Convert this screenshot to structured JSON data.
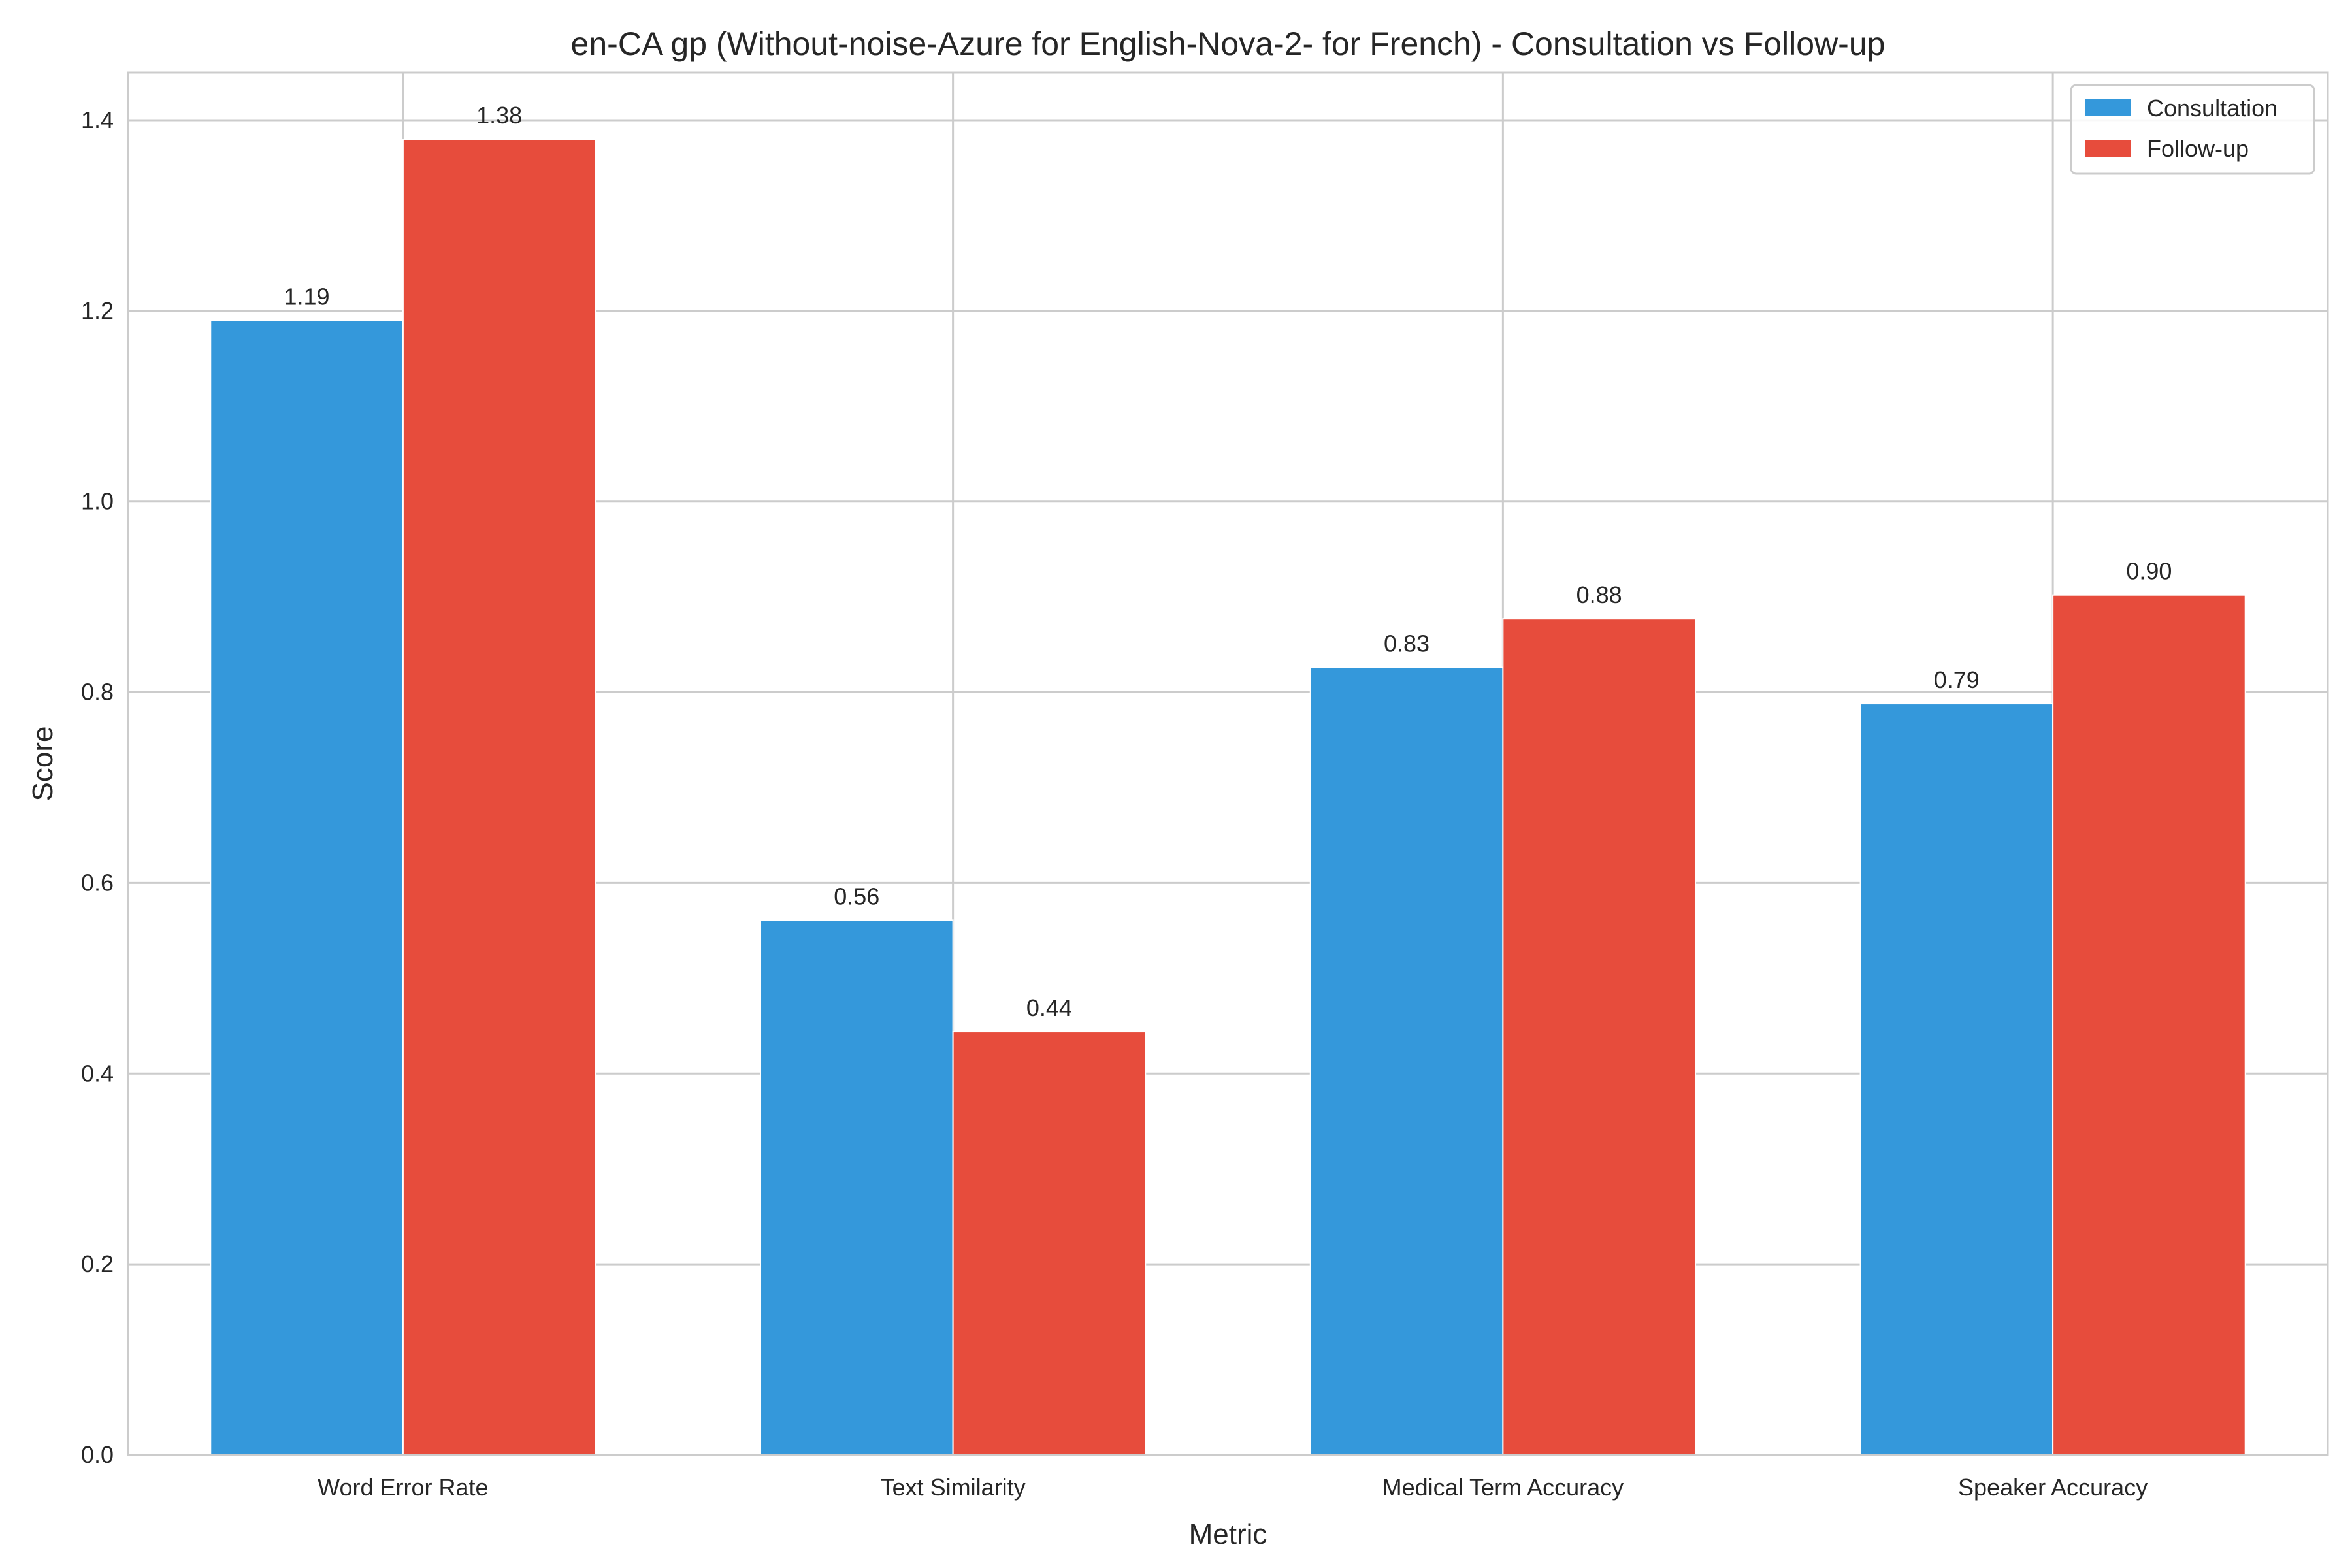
{
  "chart_data": {
    "type": "bar",
    "title": "en-CA gp (Without-noise-Azure for English-Nova-2- for French) - Consultation vs Follow-up",
    "xlabel": "Metric",
    "ylabel": "Score",
    "categories": [
      "Word Error Rate",
      "Text Similarity",
      "Medical Term Accuracy",
      "Speaker Accuracy"
    ],
    "series": [
      {
        "name": "Consultation",
        "color": "#3498db",
        "values": [
          1.19,
          0.561,
          0.826,
          0.788
        ],
        "labels": [
          "1.19",
          "0.56",
          "0.83",
          "0.79"
        ]
      },
      {
        "name": "Follow-up",
        "color": "#e74c3c",
        "values": [
          1.38,
          0.444,
          0.877,
          0.902
        ],
        "labels": [
          "1.38",
          "0.44",
          "0.88",
          "0.90"
        ]
      }
    ],
    "ylim": [
      0,
      1.45
    ],
    "yticks": [
      "0.0",
      "0.2",
      "0.4",
      "0.6",
      "0.8",
      "1.0",
      "1.2",
      "1.4"
    ],
    "grid": true,
    "legend_position": "top-right"
  }
}
